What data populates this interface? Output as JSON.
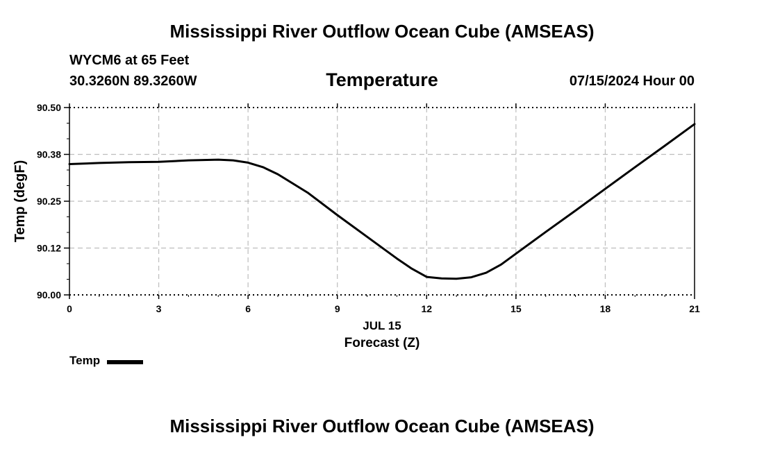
{
  "header": {
    "title": "Mississippi River Outflow Ocean Cube (AMSEAS)",
    "station": "WYCM6 at 65 Feet",
    "coords": "30.3260N  89.3260W",
    "variable": "Temperature",
    "datetime": "07/15/2024 Hour 00"
  },
  "footer": {
    "title": "Mississippi River Outflow Ocean Cube (AMSEAS)"
  },
  "legend": {
    "label": "Temp",
    "color": "#000000"
  },
  "chart_data": {
    "type": "line",
    "title": "Temperature",
    "xlabel": "Forecast (Z)",
    "xlabel_date": "JUL 15",
    "ylabel": "Temp (degF)",
    "xlim": [
      0,
      21
    ],
    "ylim": [
      90.0,
      90.5
    ],
    "x_ticks": [
      0,
      3,
      6,
      9,
      12,
      15,
      18,
      21
    ],
    "x_tick_labels": [
      "0",
      "3",
      "6",
      "9",
      "12",
      "15",
      "18",
      "21"
    ],
    "y_ticks": [
      90.0,
      90.125,
      90.25,
      90.375,
      90.5
    ],
    "y_tick_labels": [
      "90.00",
      "90.12",
      "90.25",
      "90.38",
      "90.50"
    ],
    "grid": true,
    "series": [
      {
        "name": "Temp",
        "color": "#000000",
        "x": [
          0,
          1,
          2,
          3,
          4,
          5,
          5.5,
          6,
          6.5,
          7,
          8,
          9,
          10,
          11,
          11.5,
          12,
          12.5,
          13,
          13.5,
          14,
          14.5,
          15,
          16,
          17,
          18,
          19,
          20,
          21
        ],
        "y": [
          90.349,
          90.352,
          90.354,
          90.355,
          90.359,
          90.361,
          90.359,
          90.353,
          90.341,
          90.322,
          90.273,
          90.213,
          90.155,
          90.097,
          90.07,
          90.048,
          90.044,
          90.043,
          90.047,
          90.059,
          90.081,
          90.11,
          90.168,
          90.225,
          90.283,
          90.341,
          90.398,
          90.456
        ]
      }
    ]
  }
}
